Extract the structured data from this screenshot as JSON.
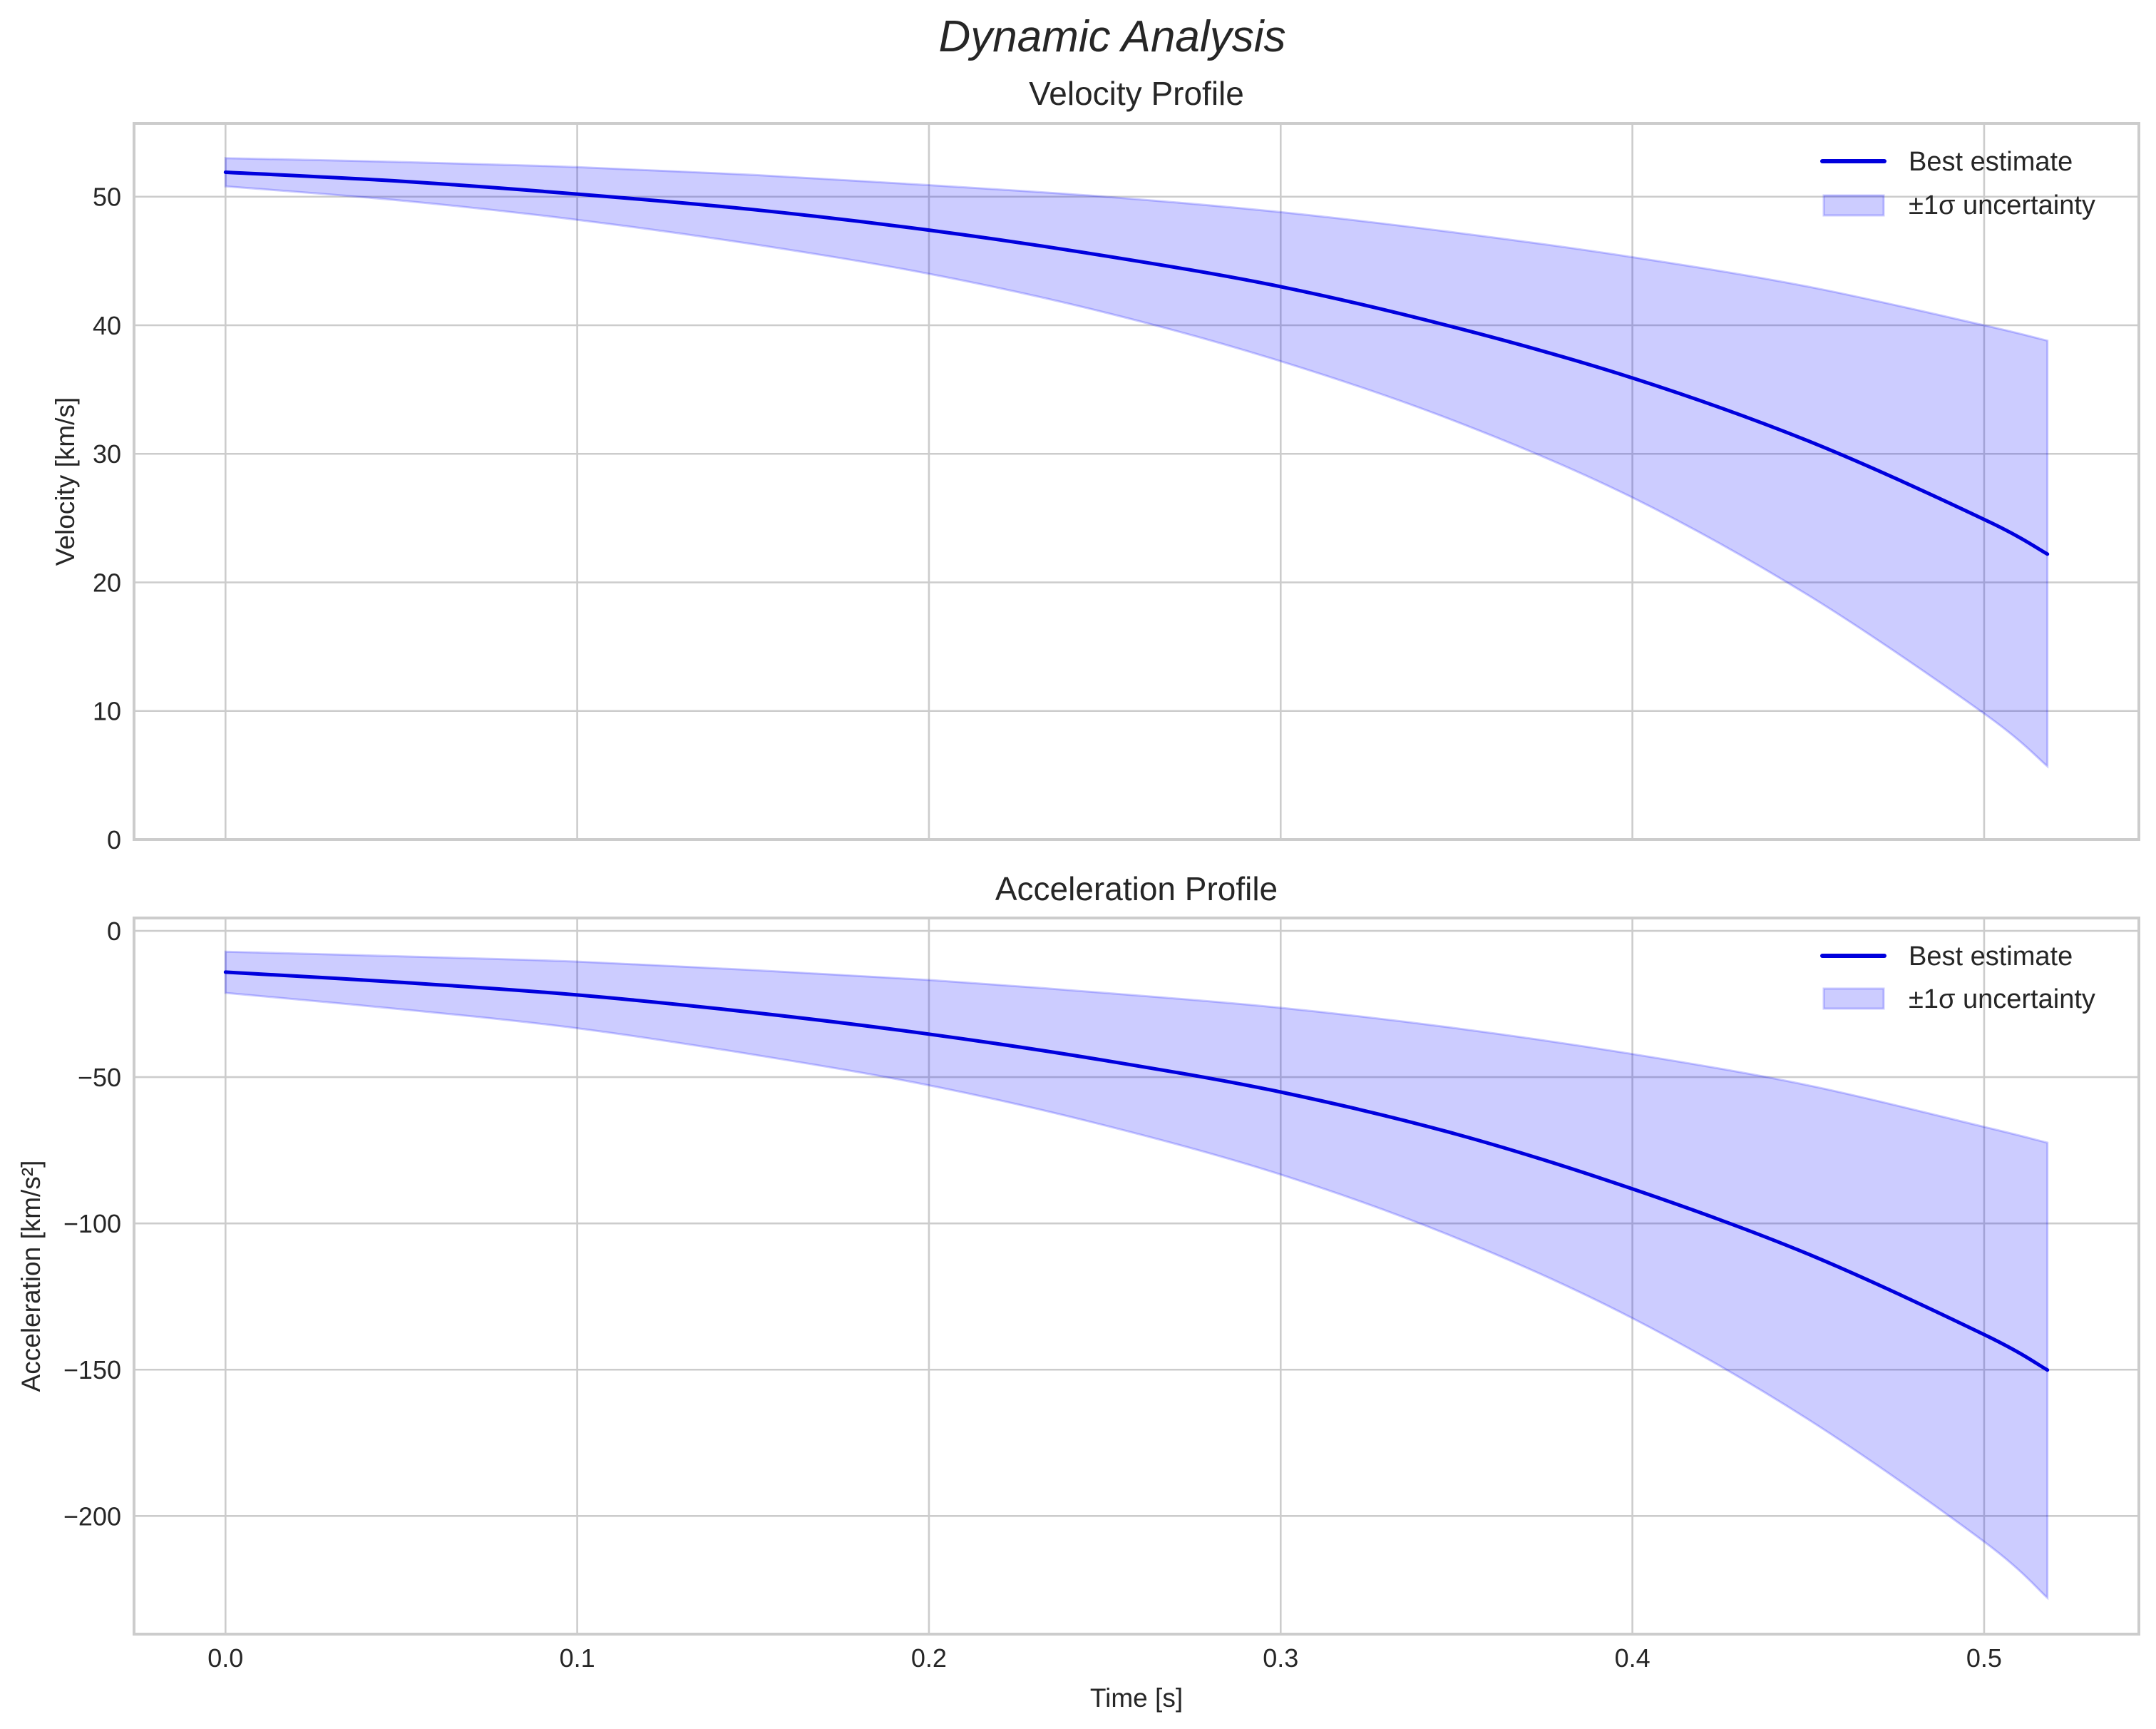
{
  "figure": {
    "suptitle": "Dynamic Analysis",
    "xlabel": "Time [s]",
    "colors": {
      "line": "#0000dd",
      "band": "#0000ff",
      "grid": "#cccccc",
      "text": "#262626"
    }
  },
  "panels": [
    {
      "title": "Velocity Profile",
      "ylabel": "Velocity [km/s]",
      "legend": {
        "line_label": "Best estimate",
        "band_label": "±1σ uncertainty"
      },
      "yticks": [
        0,
        10,
        20,
        30,
        40,
        50
      ],
      "ytick_labels": [
        "0",
        "10",
        "20",
        "30",
        "40",
        "50"
      ],
      "show_xticklabels": false
    },
    {
      "title": "Acceleration Profile",
      "ylabel": "Acceleration [km/s²]",
      "legend": {
        "line_label": "Best estimate",
        "band_label": "±1σ uncertainty"
      },
      "yticks": [
        0,
        -50,
        -100,
        -150,
        -200
      ],
      "ytick_labels": [
        "0",
        "−50",
        "−100",
        "−150",
        "−200"
      ],
      "show_xticklabels": true
    }
  ],
  "xticks": [
    0.0,
    0.1,
    0.2,
    0.3,
    0.4,
    0.5
  ],
  "xtick_labels": [
    "0.0",
    "0.1",
    "0.2",
    "0.3",
    "0.4",
    "0.5"
  ],
  "chart_data": [
    {
      "type": "line",
      "title": "Velocity Profile",
      "suptitle": "Dynamic Analysis",
      "xlabel": "Time [s]",
      "ylabel": "Velocity [km/s]",
      "xlim": [
        -0.026,
        0.544
      ],
      "ylim": [
        0,
        55.7
      ],
      "grid": true,
      "legend_position": "upper right",
      "x": [
        0.0,
        0.05,
        0.1,
        0.15,
        0.2,
        0.25,
        0.3,
        0.35,
        0.4,
        0.45,
        0.5,
        0.518
      ],
      "series": [
        {
          "name": "Best estimate",
          "values": [
            51.9,
            51.2,
            50.2,
            49.0,
            47.4,
            45.4,
            43.0,
            39.8,
            35.9,
            31.0,
            24.9,
            22.2
          ]
        },
        {
          "name": "±1σ uncertainty (upper)",
          "values": [
            53.0,
            52.7,
            52.3,
            51.7,
            50.9,
            50.0,
            48.8,
            47.2,
            45.3,
            43.0,
            40.0,
            38.8
          ]
        },
        {
          "name": "±1σ uncertainty (lower)",
          "values": [
            50.8,
            49.7,
            48.2,
            46.3,
            44.0,
            41.0,
            37.2,
            32.5,
            26.6,
            19.0,
            9.8,
            5.7
          ]
        }
      ]
    },
    {
      "type": "line",
      "title": "Acceleration Profile",
      "xlabel": "Time [s]",
      "ylabel": "Acceleration [km/s²]",
      "xlim": [
        -0.026,
        0.544
      ],
      "ylim": [
        -240.4,
        4.4
      ],
      "grid": true,
      "legend_position": "upper right",
      "x": [
        0.0,
        0.05,
        0.1,
        0.15,
        0.2,
        0.25,
        0.3,
        0.35,
        0.4,
        0.45,
        0.5,
        0.518
      ],
      "series": [
        {
          "name": "Best estimate",
          "values": [
            -14.1,
            -17.6,
            -21.9,
            -27.9,
            -35.3,
            -44.3,
            -55.1,
            -69.5,
            -88.2,
            -110.5,
            -138.0,
            -150.1
          ]
        },
        {
          "name": "±1σ uncertainty (upper)",
          "values": [
            -7.1,
            -8.7,
            -10.5,
            -13.4,
            -16.8,
            -21.2,
            -26.3,
            -33.3,
            -42.1,
            -52.8,
            -67.0,
            -72.4
          ]
        },
        {
          "name": "±1σ uncertainty (lower)",
          "values": [
            -21.2,
            -26.8,
            -33.3,
            -42.3,
            -52.8,
            -66.5,
            -83.3,
            -105.0,
            -132.4,
            -167.0,
            -208.8,
            -228.0
          ]
        }
      ]
    }
  ]
}
